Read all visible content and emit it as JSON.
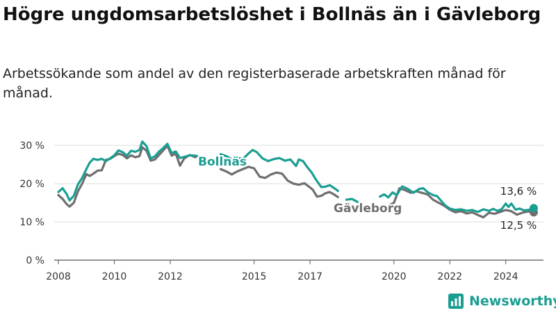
{
  "header": {
    "title": "Högre ungdomsarbetslöshet i Bollnäs än i Gävleborg",
    "subtitle": "Arbetssökande som andel av den registerbaserade arbetskraften månad för månad."
  },
  "brand": {
    "name": "Newsworthy",
    "icon": "bar-chart-logo-icon",
    "color": "#1a9e92"
  },
  "chart_data": {
    "type": "line",
    "ylim": [
      0,
      32
    ],
    "xlim": [
      2007.85,
      2025.35
    ],
    "y_ticks": [
      {
        "value": 0,
        "label": "0 %"
      },
      {
        "value": 10,
        "label": "10 %"
      },
      {
        "value": 20,
        "label": "20 %"
      },
      {
        "value": 30,
        "label": "30 %"
      }
    ],
    "x_ticks": [
      {
        "value": 2008,
        "label": "2008"
      },
      {
        "value": 2010,
        "label": "2010"
      },
      {
        "value": 2012,
        "label": "2012"
      },
      {
        "value": 2015,
        "label": "2015"
      },
      {
        "value": 2017,
        "label": "2017"
      },
      {
        "value": 2020,
        "label": "2020"
      },
      {
        "value": 2022,
        "label": "2022"
      },
      {
        "value": 2024,
        "label": "2024"
      }
    ],
    "grid": true,
    "series": [
      {
        "name": "Bollnäs",
        "color": "#1a9e92",
        "end_label": "13,6 %",
        "points": [
          [
            2008.0,
            17.8
          ],
          [
            2008.15,
            18.8
          ],
          [
            2008.3,
            17.2
          ],
          [
            2008.4,
            15.6
          ],
          [
            2008.55,
            16.8
          ],
          [
            2008.7,
            19.8
          ],
          [
            2008.85,
            21.5
          ],
          [
            2009.0,
            23.8
          ],
          [
            2009.12,
            25.5
          ],
          [
            2009.25,
            26.5
          ],
          [
            2009.4,
            26.2
          ],
          [
            2009.55,
            26.5
          ],
          [
            2009.7,
            25.9
          ],
          [
            2009.85,
            26.6
          ],
          [
            2010.0,
            27.4
          ],
          [
            2010.15,
            28.7
          ],
          [
            2010.3,
            28.2
          ],
          [
            2010.45,
            27.3
          ],
          [
            2010.6,
            28.6
          ],
          [
            2010.75,
            28.3
          ],
          [
            2010.9,
            28.8
          ],
          [
            2011.0,
            31.0
          ],
          [
            2011.15,
            29.8
          ],
          [
            2011.3,
            26.6
          ],
          [
            2011.45,
            27.1
          ],
          [
            2011.6,
            28.4
          ],
          [
            2011.75,
            29.3
          ],
          [
            2011.9,
            30.4
          ],
          [
            2012.05,
            28.0
          ],
          [
            2012.2,
            28.4
          ],
          [
            2012.35,
            26.7
          ],
          [
            2012.5,
            27.0
          ],
          [
            2012.7,
            27.4
          ],
          [
            2012.9,
            27.3
          ],
          [
            2013.1,
            27.0
          ],
          null,
          [
            2013.8,
            27.7
          ],
          [
            2014.0,
            27.2
          ],
          [
            2014.2,
            26.4
          ],
          [
            2014.4,
            26.8
          ],
          [
            2014.6,
            26.4
          ],
          [
            2014.8,
            27.9
          ],
          [
            2014.95,
            28.8
          ],
          [
            2015.1,
            28.2
          ],
          [
            2015.3,
            26.6
          ],
          [
            2015.5,
            25.9
          ],
          [
            2015.7,
            26.4
          ],
          [
            2015.9,
            26.7
          ],
          [
            2016.1,
            26.0
          ],
          [
            2016.3,
            26.3
          ],
          [
            2016.5,
            24.6
          ],
          [
            2016.6,
            26.3
          ],
          [
            2016.75,
            25.9
          ],
          [
            2016.9,
            24.3
          ],
          [
            2017.05,
            23.0
          ],
          [
            2017.2,
            21.2
          ],
          [
            2017.4,
            19.1
          ],
          [
            2017.55,
            19.2
          ],
          [
            2017.7,
            19.6
          ],
          [
            2017.85,
            18.9
          ],
          [
            2018.0,
            18.1
          ],
          null,
          [
            2018.3,
            15.8
          ],
          [
            2018.5,
            16.0
          ],
          [
            2018.7,
            15.2
          ],
          null,
          [
            2019.5,
            16.6
          ],
          [
            2019.65,
            17.2
          ],
          [
            2019.8,
            16.4
          ],
          [
            2019.95,
            17.7
          ],
          [
            2020.1,
            17.0
          ],
          [
            2020.3,
            19.3
          ],
          [
            2020.5,
            18.6
          ],
          [
            2020.7,
            17.6
          ],
          [
            2020.9,
            18.6
          ],
          [
            2021.05,
            18.8
          ],
          [
            2021.2,
            17.8
          ],
          [
            2021.4,
            17.0
          ],
          [
            2021.55,
            16.7
          ],
          [
            2021.7,
            15.4
          ],
          [
            2021.85,
            14.2
          ],
          [
            2022.0,
            13.5
          ],
          [
            2022.2,
            13.1
          ],
          [
            2022.4,
            13.3
          ],
          [
            2022.6,
            12.9
          ],
          [
            2022.8,
            13.1
          ],
          [
            2023.0,
            12.6
          ],
          [
            2023.2,
            13.3
          ],
          [
            2023.4,
            12.9
          ],
          [
            2023.55,
            13.4
          ],
          [
            2023.7,
            12.9
          ],
          [
            2023.85,
            13.3
          ],
          [
            2024.0,
            14.8
          ],
          [
            2024.1,
            13.9
          ],
          [
            2024.2,
            14.8
          ],
          [
            2024.35,
            13.2
          ],
          [
            2024.5,
            13.5
          ],
          [
            2024.65,
            13.0
          ],
          [
            2024.8,
            13.1
          ],
          [
            2025.0,
            13.6
          ]
        ]
      },
      {
        "name": "Gävleborg",
        "color": "#6e6e6e",
        "end_label": "12,5 %",
        "points": [
          [
            2008.0,
            17.0
          ],
          [
            2008.15,
            16.0
          ],
          [
            2008.3,
            14.6
          ],
          [
            2008.4,
            14.0
          ],
          [
            2008.55,
            15.0
          ],
          [
            2008.7,
            18.0
          ],
          [
            2008.85,
            20.0
          ],
          [
            2009.0,
            22.5
          ],
          [
            2009.12,
            22.0
          ],
          [
            2009.25,
            22.6
          ],
          [
            2009.4,
            23.4
          ],
          [
            2009.55,
            23.5
          ],
          [
            2009.7,
            26.2
          ],
          [
            2009.85,
            26.5
          ],
          [
            2010.0,
            27.2
          ],
          [
            2010.15,
            27.8
          ],
          [
            2010.3,
            27.5
          ],
          [
            2010.45,
            26.6
          ],
          [
            2010.6,
            27.4
          ],
          [
            2010.75,
            26.9
          ],
          [
            2010.9,
            27.2
          ],
          [
            2011.0,
            29.5
          ],
          [
            2011.15,
            28.6
          ],
          [
            2011.3,
            26.0
          ],
          [
            2011.45,
            26.3
          ],
          [
            2011.6,
            27.5
          ],
          [
            2011.75,
            28.7
          ],
          [
            2011.9,
            29.9
          ],
          [
            2012.05,
            27.3
          ],
          [
            2012.2,
            27.8
          ],
          [
            2012.35,
            24.7
          ],
          [
            2012.5,
            26.6
          ],
          [
            2012.7,
            27.5
          ],
          [
            2012.9,
            26.9
          ],
          null,
          [
            2013.8,
            23.8
          ],
          [
            2014.0,
            23.2
          ],
          [
            2014.2,
            22.4
          ],
          [
            2014.4,
            23.2
          ],
          [
            2014.6,
            23.8
          ],
          [
            2014.8,
            24.4
          ],
          [
            2015.0,
            24.0
          ],
          [
            2015.2,
            21.8
          ],
          [
            2015.4,
            21.5
          ],
          [
            2015.6,
            22.4
          ],
          [
            2015.8,
            22.9
          ],
          [
            2016.0,
            22.6
          ],
          [
            2016.2,
            20.8
          ],
          [
            2016.4,
            20.0
          ],
          [
            2016.6,
            19.7
          ],
          [
            2016.8,
            20.1
          ],
          [
            2017.0,
            19.0
          ],
          [
            2017.1,
            18.4
          ],
          [
            2017.25,
            16.6
          ],
          [
            2017.4,
            16.8
          ],
          [
            2017.55,
            17.5
          ],
          [
            2017.7,
            17.8
          ],
          [
            2017.85,
            17.2
          ],
          [
            2018.0,
            16.5
          ],
          null,
          [
            2019.8,
            14.2
          ],
          [
            2020.0,
            15.0
          ],
          [
            2020.2,
            18.8
          ],
          [
            2020.4,
            18.3
          ],
          [
            2020.6,
            17.6
          ],
          [
            2020.8,
            18.0
          ],
          [
            2021.0,
            17.6
          ],
          [
            2021.2,
            17.2
          ],
          [
            2021.4,
            15.8
          ],
          [
            2021.6,
            15.0
          ],
          [
            2021.8,
            14.2
          ],
          [
            2022.0,
            13.2
          ],
          [
            2022.2,
            12.5
          ],
          [
            2022.4,
            12.8
          ],
          [
            2022.6,
            12.2
          ],
          [
            2022.8,
            12.5
          ],
          [
            2023.0,
            11.8
          ],
          [
            2023.2,
            11.2
          ],
          [
            2023.4,
            12.4
          ],
          [
            2023.6,
            12.1
          ],
          [
            2023.8,
            12.6
          ],
          [
            2024.0,
            13.1
          ],
          [
            2024.2,
            12.8
          ],
          [
            2024.4,
            11.9
          ],
          [
            2024.6,
            12.4
          ],
          [
            2024.8,
            12.7
          ],
          [
            2025.0,
            12.5
          ]
        ]
      }
    ]
  }
}
